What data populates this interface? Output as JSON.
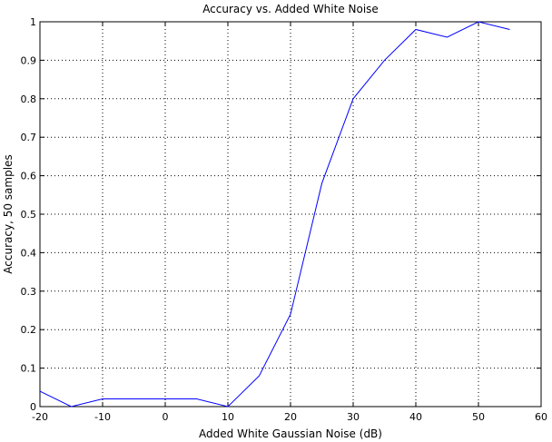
{
  "chart_data": {
    "type": "line",
    "title": "Accuracy vs. Added White Noise",
    "xlabel": "Added White Gaussian Noise (dB)",
    "ylabel": "Accuracy, 50 samples",
    "xlim": [
      -20,
      60
    ],
    "ylim": [
      0,
      1
    ],
    "xticks": [
      -20,
      -10,
      0,
      10,
      20,
      30,
      40,
      50,
      60
    ],
    "yticks": [
      0,
      0.1,
      0.2,
      0.3,
      0.4,
      0.5,
      0.6,
      0.7,
      0.8,
      0.9,
      1
    ],
    "grid": true,
    "series": [
      {
        "color": "#0000ff",
        "x": [
          -20,
          -15,
          -10,
          -5,
          0,
          5,
          10,
          15,
          20,
          25,
          30,
          35,
          40,
          45,
          50,
          55
        ],
        "y": [
          0.04,
          0.0,
          0.02,
          0.02,
          0.02,
          0.02,
          0.0,
          0.08,
          0.24,
          0.58,
          0.8,
          0.9,
          0.98,
          0.96,
          1.0,
          0.98
        ]
      }
    ]
  }
}
